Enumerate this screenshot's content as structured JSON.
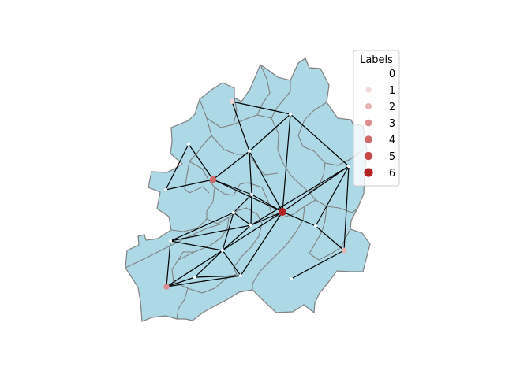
{
  "legend": {
    "title": "Labels",
    "entries": [
      {
        "label": "0",
        "color": "#ffffff"
      },
      {
        "label": "1",
        "color": "#f2d9d9"
      },
      {
        "label": "2",
        "color": "#e6b3b3"
      },
      {
        "label": "3",
        "color": "#dd8f8f"
      },
      {
        "label": "4",
        "color": "#d06b6b"
      },
      {
        "label": "5",
        "color": "#c44848"
      },
      {
        "label": "6",
        "color": "#b22222"
      }
    ]
  },
  "colors": {
    "region_fill": "#add8e6",
    "region_border": "#808080",
    "edge": "#000000"
  }
}
